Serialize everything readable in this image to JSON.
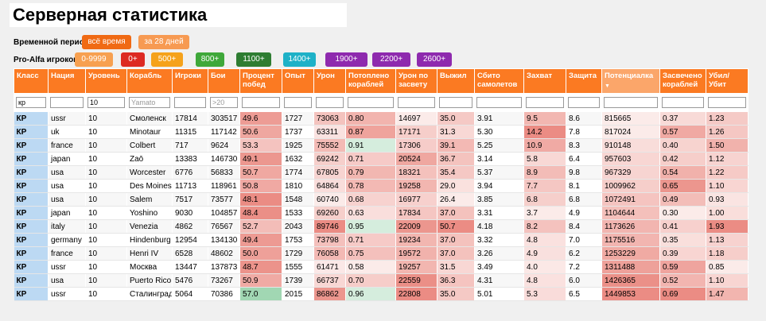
{
  "title": "Серверная статистика",
  "period": {
    "label": "Временной период:",
    "options": [
      {
        "label": "всё время",
        "color": "#f06a14"
      },
      {
        "label": "за 28 дней",
        "color": "#f79a52"
      }
    ]
  },
  "proalfa": {
    "label": "Pro-Alfa игроков:",
    "options": [
      {
        "label": "0-9999",
        "color": "#f7a050"
      },
      {
        "label": "0+",
        "color": "#dd2a22"
      },
      {
        "label": "500+",
        "color": "#f5a21b"
      },
      {
        "label": "800+",
        "color": "#3fa83a"
      },
      {
        "label": "1100+",
        "color": "#2e7d32"
      },
      {
        "label": "1400+",
        "color": "#1eb1c7"
      },
      {
        "label": "1900+",
        "color": "#8e2aae"
      },
      {
        "label": "2200+",
        "color": "#8e2aae"
      },
      {
        "label": "2600+",
        "color": "#8e2aae"
      }
    ]
  },
  "columns": [
    "Класс",
    "Нация",
    "Уровень",
    "Корабль",
    "Игроки",
    "Бои",
    "Процент побед",
    "Опыт",
    "Урон",
    "Потоплено кораблей",
    "Урон по засвету",
    "Выжил",
    "Сбито самолетов",
    "Захват",
    "Защита",
    "Потенциалка",
    "Засвечено кораблей",
    "Убил/Убит"
  ],
  "sorted_column": 15,
  "filters": {
    "class": "кр",
    "level": "10",
    "ship_placeholder": "Yamato",
    "battles_placeholder": ">20"
  },
  "rows": [
    [
      "КР",
      "ussr",
      "10",
      "Смоленск",
      "17814",
      "303517",
      "49.6",
      "1727",
      "73063",
      "0.80",
      "14697",
      "35.0",
      "3.91",
      "9.5",
      "8.6",
      "815665",
      "0.37",
      "1.23"
    ],
    [
      "КР",
      "uk",
      "10",
      "Minotaur",
      "11315",
      "117142",
      "50.6",
      "1737",
      "63311",
      "0.87",
      "17171",
      "31.3",
      "5.30",
      "14.2",
      "7.8",
      "817024",
      "0.57",
      "1.26"
    ],
    [
      "КР",
      "france",
      "10",
      "Colbert",
      "717",
      "9624",
      "53.3",
      "1925",
      "75552",
      "0.91",
      "17306",
      "39.1",
      "5.25",
      "10.9",
      "8.3",
      "910148",
      "0.40",
      "1.50"
    ],
    [
      "КР",
      "japan",
      "10",
      "Zaō",
      "13383",
      "146730",
      "49.1",
      "1632",
      "69242",
      "0.71",
      "20524",
      "36.7",
      "3.14",
      "5.8",
      "6.4",
      "957603",
      "0.42",
      "1.12"
    ],
    [
      "КР",
      "usa",
      "10",
      "Worcester",
      "6776",
      "56833",
      "50.7",
      "1774",
      "67805",
      "0.79",
      "18321",
      "35.4",
      "5.37",
      "8.9",
      "9.8",
      "967329",
      "0.54",
      "1.22"
    ],
    [
      "КР",
      "usa",
      "10",
      "Des Moines",
      "11713",
      "118961",
      "50.8",
      "1810",
      "64864",
      "0.78",
      "19258",
      "29.0",
      "3.94",
      "7.7",
      "8.1",
      "1009962",
      "0.65",
      "1.10"
    ],
    [
      "КР",
      "usa",
      "10",
      "Salem",
      "7517",
      "73577",
      "48.1",
      "1548",
      "60740",
      "0.68",
      "16977",
      "26.4",
      "3.85",
      "6.8",
      "6.8",
      "1072491",
      "0.49",
      "0.93"
    ],
    [
      "КР",
      "japan",
      "10",
      "Yoshino",
      "9030",
      "104857",
      "48.4",
      "1533",
      "69260",
      "0.63",
      "17834",
      "37.0",
      "3.31",
      "3.7",
      "4.9",
      "1104644",
      "0.30",
      "1.00"
    ],
    [
      "КР",
      "italy",
      "10",
      "Venezia",
      "4862",
      "76567",
      "52.7",
      "2043",
      "89746",
      "0.95",
      "22009",
      "50.7",
      "4.18",
      "8.2",
      "8.4",
      "1173626",
      "0.41",
      "1.93"
    ],
    [
      "КР",
      "germany",
      "10",
      "Hindenburg",
      "12954",
      "134130",
      "49.4",
      "1753",
      "73798",
      "0.71",
      "19234",
      "37.0",
      "3.32",
      "4.8",
      "7.0",
      "1175516",
      "0.35",
      "1.13"
    ],
    [
      "КР",
      "france",
      "10",
      "Henri IV",
      "6528",
      "48602",
      "50.0",
      "1729",
      "76058",
      "0.75",
      "19572",
      "37.0",
      "3.26",
      "4.9",
      "6.2",
      "1253229",
      "0.39",
      "1.18"
    ],
    [
      "КР",
      "ussr",
      "10",
      "Москва",
      "13447",
      "137873",
      "48.7",
      "1555",
      "61471",
      "0.58",
      "19257",
      "31.5",
      "3.49",
      "4.0",
      "7.2",
      "1311488",
      "0.59",
      "0.85"
    ],
    [
      "КР",
      "usa",
      "10",
      "Puerto Rico",
      "5476",
      "73267",
      "50.9",
      "1739",
      "66737",
      "0.70",
      "22559",
      "36.3",
      "4.31",
      "4.8",
      "6.0",
      "1426365",
      "0.52",
      "1.10"
    ],
    [
      "КР",
      "ussr",
      "10",
      "Сталинград",
      "5064",
      "70386",
      "57.0",
      "2015",
      "86862",
      "0.96",
      "22808",
      "35.0",
      "5.01",
      "5.3",
      "6.5",
      "1449853",
      "0.69",
      "1.47"
    ]
  ]
}
